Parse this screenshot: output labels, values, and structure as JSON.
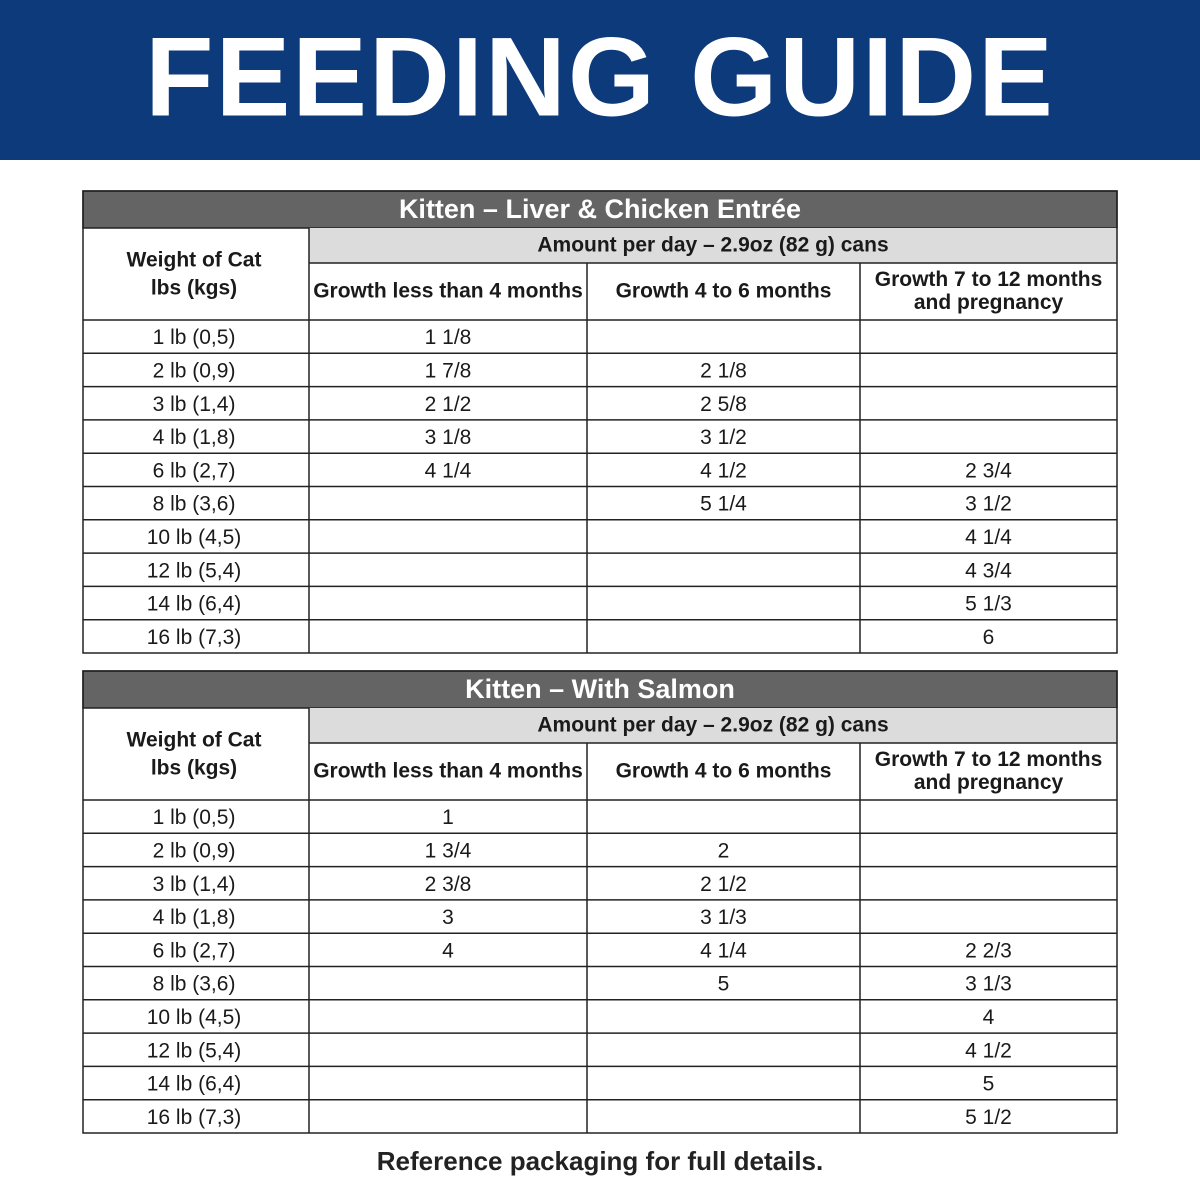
{
  "header": {
    "title": "FEEDING GUIDE"
  },
  "tables": [
    {
      "title": "Kitten – Liver & Chicken Entrée",
      "weight_header": [
        "Weight of Cat",
        "lbs (kgs)"
      ],
      "amount_header": "Amount per day – 2.9oz (82 g) cans",
      "columns": [
        [
          "Growth less than 4 months"
        ],
        [
          "Growth 4 to 6 months"
        ],
        [
          "Growth 7 to 12 months",
          "and pregnancy"
        ]
      ],
      "rows": [
        [
          "1 lb (0,5)",
          "1 1/8",
          null,
          null
        ],
        [
          "2 lb (0,9)",
          "1 7/8",
          "2 1/8",
          null
        ],
        [
          "3 lb (1,4)",
          "2 1/2",
          "2 5/8",
          null
        ],
        [
          "4 lb (1,8)",
          "3 1/8",
          "3 1/2",
          null
        ],
        [
          "6 lb (2,7)",
          "4 1/4",
          "4 1/2",
          "2 3/4"
        ],
        [
          "8 lb (3,6)",
          null,
          "5 1/4",
          "3 1/2"
        ],
        [
          "10 lb (4,5)",
          null,
          null,
          "4 1/4"
        ],
        [
          "12 lb (5,4)",
          null,
          null,
          "4 3/4"
        ],
        [
          "14 lb (6,4)",
          null,
          null,
          "5 1/3"
        ],
        [
          "16 lb (7,3)",
          null,
          null,
          "6"
        ]
      ]
    },
    {
      "title": "Kitten – With Salmon",
      "weight_header": [
        "Weight of Cat",
        "lbs (kgs)"
      ],
      "amount_header": "Amount per day – 2.9oz (82 g) cans",
      "columns": [
        [
          "Growth less than 4 months"
        ],
        [
          "Growth 4 to 6 months"
        ],
        [
          "Growth 7 to 12 months",
          "and pregnancy"
        ]
      ],
      "rows": [
        [
          "1 lb (0,5)",
          "1",
          null,
          null
        ],
        [
          "2 lb (0,9)",
          "1 3/4",
          "2",
          null
        ],
        [
          "3 lb (1,4)",
          "2 3/8",
          "2 1/2",
          null
        ],
        [
          "4 lb (1,8)",
          "3",
          "3 1/3",
          null
        ],
        [
          "6 lb (2,7)",
          "4",
          "4 1/4",
          "2 2/3"
        ],
        [
          "8 lb (3,6)",
          null,
          "5",
          "3 1/3"
        ],
        [
          "10 lb (4,5)",
          null,
          null,
          "4"
        ],
        [
          "12 lb (5,4)",
          null,
          null,
          "4 1/2"
        ],
        [
          "14 lb (6,4)",
          null,
          null,
          "5"
        ],
        [
          "16 lb (7,3)",
          null,
          null,
          "5 1/2"
        ]
      ]
    }
  ],
  "footer": "Reference packaging for full details."
}
